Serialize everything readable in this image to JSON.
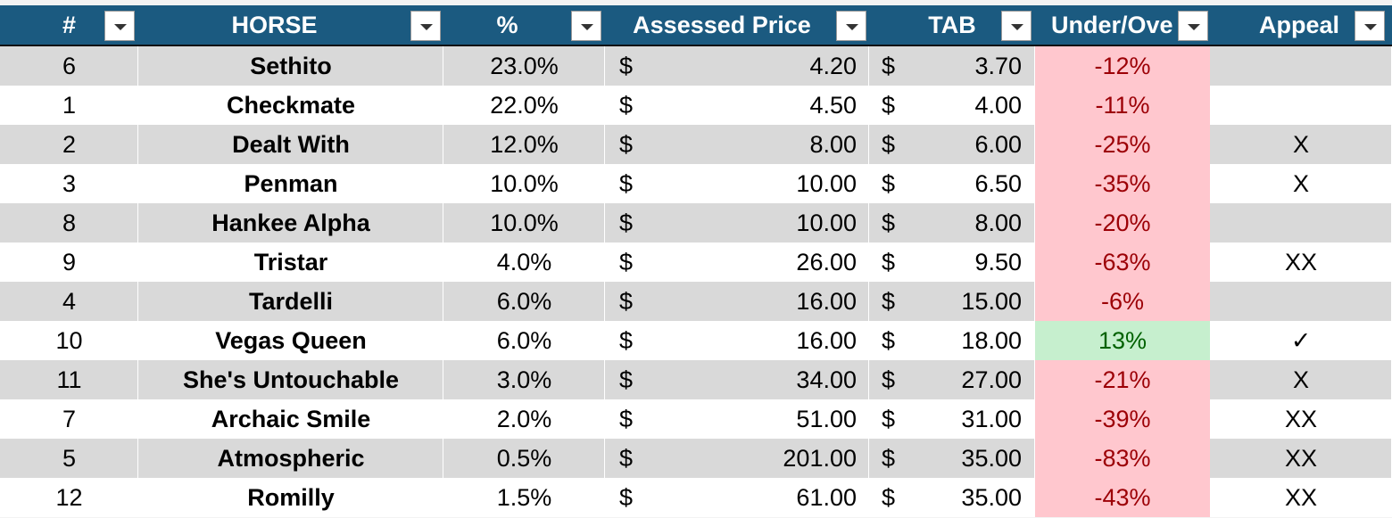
{
  "table": {
    "header": [
      "#",
      "HORSE",
      "%",
      "Assessed Price",
      "TAB",
      "Under/Ove",
      "Appeal"
    ],
    "currency": "$",
    "rows": [
      {
        "num": "6",
        "horse": "Sethito",
        "pct": "23.0%",
        "price": "4.20",
        "tab": "3.70",
        "diff": "-12%"
      },
      {
        "num": "1",
        "horse": "Checkmate",
        "pct": "22.0%",
        "price": "4.50",
        "tab": "4.00",
        "diff": "-11%"
      },
      {
        "num": "2",
        "horse": "Dealt With",
        "pct": "12.0%",
        "price": "8.00",
        "tab": "6.00",
        "diff": "-25%",
        "appeal": "X"
      },
      {
        "num": "3",
        "horse": "Penman",
        "pct": "10.0%",
        "price": "10.00",
        "tab": "6.50",
        "diff": "-35%",
        "appeal": "X"
      },
      {
        "num": "8",
        "horse": "Hankee Alpha",
        "pct": "10.0%",
        "price": "10.00",
        "tab": "8.00",
        "diff": "-20%"
      },
      {
        "num": "9",
        "horse": "Tristar",
        "pct": "4.0%",
        "price": "26.00",
        "tab": "9.50",
        "diff": "-63%",
        "appeal": "XX"
      },
      {
        "num": "4",
        "horse": "Tardelli",
        "pct": "6.0%",
        "price": "16.00",
        "tab": "15.00",
        "diff": "-6%"
      },
      {
        "num": "10",
        "horse": "Vegas Queen",
        "pct": "6.0%",
        "price": "16.00",
        "tab": "18.00",
        "diff": "13%",
        "appeal": "✓"
      },
      {
        "num": "11",
        "horse": "She's Untouchable",
        "pct": "3.0%",
        "price": "34.00",
        "tab": "27.00",
        "diff": "-21%",
        "appeal": "X"
      },
      {
        "num": "7",
        "horse": "Archaic Smile",
        "pct": "2.0%",
        "price": "51.00",
        "tab": "31.00",
        "diff": "-39%",
        "appeal": "XX"
      },
      {
        "num": "5",
        "horse": "Atmospheric",
        "pct": "0.5%",
        "price": "201.00",
        "tab": "35.00",
        "diff": "-83%",
        "appeal": "XX"
      },
      {
        "num": "12",
        "horse": "Romilly",
        "pct": "1.5%",
        "price": "61.00",
        "tab": "35.00",
        "diff": "-43%",
        "appeal": "XX"
      }
    ]
  }
}
